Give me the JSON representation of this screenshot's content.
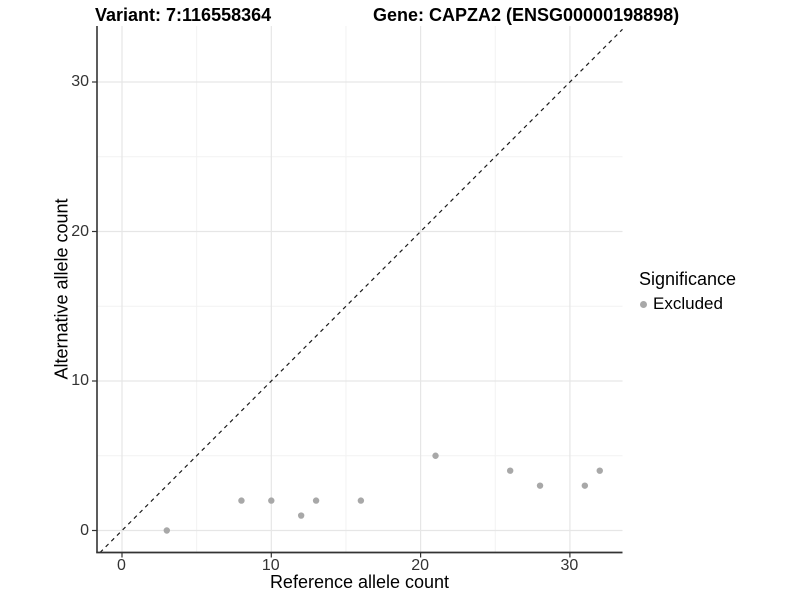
{
  "header": {
    "variant_title": "Variant: 7:116558364",
    "gene_title": "Gene: CAPZA2 (ENSG00000198898)"
  },
  "chart_data": {
    "type": "scatter",
    "xlabel": "Reference allele count",
    "ylabel": "Alternative allele count",
    "x_ticks": [
      0,
      10,
      20,
      30
    ],
    "y_ticks": [
      0,
      10,
      20,
      30
    ],
    "x_minor_ticks": [
      5,
      15,
      25
    ],
    "y_minor_ticks": [
      5,
      15,
      25
    ],
    "xlim": [
      -1.7,
      33.5
    ],
    "ylim": [
      -1.5,
      33.75
    ],
    "grid": "on",
    "identity_line": {
      "style": "dashed",
      "slope": 1,
      "intercept": 0
    },
    "series": [
      {
        "name": "Excluded",
        "points": [
          [
            3,
            0
          ],
          [
            8,
            2
          ],
          [
            10,
            2
          ],
          [
            12,
            1
          ],
          [
            13,
            2
          ],
          [
            16,
            2
          ],
          [
            21,
            5
          ],
          [
            26,
            4
          ],
          [
            28,
            3
          ],
          [
            31,
            3
          ],
          [
            32,
            4
          ]
        ]
      }
    ],
    "legend": {
      "title": "Significance",
      "position": "right",
      "entries": [
        {
          "label": "Excluded",
          "color": "#a8a8a8"
        }
      ]
    },
    "colors": {
      "point": "#a8a8a8",
      "grid_major": "#e6e6e6",
      "grid_minor": "#f2f2f2",
      "axis_line": "#333333",
      "tick_mark": "#333333",
      "identity_line": "#1a1a1a"
    }
  }
}
